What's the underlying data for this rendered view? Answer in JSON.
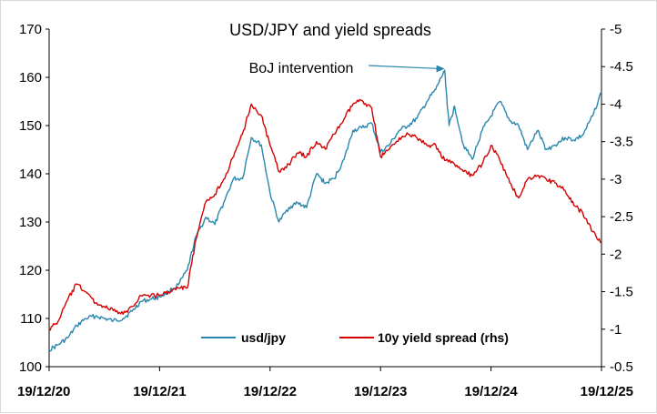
{
  "chart_data": {
    "type": "line",
    "title": "USD/JPY and yield spreads",
    "x_tick_labels": [
      "19/12/20",
      "19/12/21",
      "19/12/22",
      "19/12/23",
      "19/12/24",
      "19/12/25"
    ],
    "ylim_left": [
      100,
      170
    ],
    "yticks_left": [
      "100",
      "110",
      "120",
      "130",
      "140",
      "150",
      "160",
      "170"
    ],
    "ylim_right": [
      -0.5,
      -5
    ],
    "yticks_right": [
      "-0.5",
      "-1",
      "-1.5",
      "-2",
      "-2.5",
      "-3",
      "-3.5",
      "-4",
      "-4.5",
      "-5"
    ],
    "right_axis_inverted": true,
    "grid": false,
    "legend_position": "bottom-center",
    "annotation": {
      "text": "BoJ intervention",
      "x": 3.58,
      "y": 161.8
    },
    "series": [
      {
        "name": "usd/jpy",
        "axis": "left",
        "color": "#2a86ad",
        "points": [
          [
            0.0,
            103.5
          ],
          [
            0.08,
            104.5
          ],
          [
            0.17,
            106
          ],
          [
            0.25,
            108.5
          ],
          [
            0.33,
            110
          ],
          [
            0.42,
            110.5
          ],
          [
            0.5,
            110
          ],
          [
            0.58,
            109.5
          ],
          [
            0.67,
            110
          ],
          [
            0.75,
            111.5
          ],
          [
            0.83,
            113.5
          ],
          [
            0.92,
            114
          ],
          [
            1.0,
            114.5
          ],
          [
            1.08,
            115.5
          ],
          [
            1.17,
            117
          ],
          [
            1.25,
            120
          ],
          [
            1.33,
            127
          ],
          [
            1.42,
            131
          ],
          [
            1.5,
            129.5
          ],
          [
            1.58,
            134
          ],
          [
            1.67,
            139
          ],
          [
            1.75,
            139
          ],
          [
            1.83,
            147.5
          ],
          [
            1.92,
            146
          ],
          [
            2.0,
            136
          ],
          [
            2.08,
            130
          ],
          [
            2.17,
            133
          ],
          [
            2.25,
            134
          ],
          [
            2.33,
            133
          ],
          [
            2.42,
            140
          ],
          [
            2.5,
            138
          ],
          [
            2.58,
            139
          ],
          [
            2.67,
            143
          ],
          [
            2.75,
            149
          ],
          [
            2.83,
            149.5
          ],
          [
            2.92,
            150.5
          ],
          [
            3.0,
            144.5
          ],
          [
            3.08,
            146
          ],
          [
            3.17,
            149
          ],
          [
            3.25,
            150
          ],
          [
            3.33,
            151.5
          ],
          [
            3.42,
            155
          ],
          [
            3.5,
            157.5
          ],
          [
            3.58,
            161.5
          ],
          [
            3.62,
            150
          ],
          [
            3.67,
            154
          ],
          [
            3.75,
            146
          ],
          [
            3.83,
            143
          ],
          [
            3.92,
            149
          ],
          [
            4.0,
            152
          ],
          [
            4.08,
            155
          ],
          [
            4.17,
            151
          ],
          [
            4.25,
            150
          ],
          [
            4.33,
            145
          ],
          [
            4.42,
            149
          ],
          [
            4.5,
            145
          ],
          [
            4.58,
            146
          ],
          [
            4.67,
            147.5
          ],
          [
            4.75,
            147
          ],
          [
            4.83,
            148
          ],
          [
            4.92,
            152
          ],
          [
            5.0,
            157
          ]
        ]
      },
      {
        "name": "10y yield spread (rhs)",
        "axis": "right",
        "color": "#d40000",
        "points": [
          [
            0.0,
            -1.0
          ],
          [
            0.08,
            -1.1
          ],
          [
            0.17,
            -1.4
          ],
          [
            0.25,
            -1.6
          ],
          [
            0.33,
            -1.5
          ],
          [
            0.42,
            -1.35
          ],
          [
            0.5,
            -1.3
          ],
          [
            0.58,
            -1.25
          ],
          [
            0.67,
            -1.2
          ],
          [
            0.75,
            -1.3
          ],
          [
            0.83,
            -1.45
          ],
          [
            0.92,
            -1.45
          ],
          [
            1.0,
            -1.45
          ],
          [
            1.08,
            -1.5
          ],
          [
            1.17,
            -1.55
          ],
          [
            1.25,
            -1.55
          ],
          [
            1.33,
            -2.2
          ],
          [
            1.42,
            -2.7
          ],
          [
            1.5,
            -2.8
          ],
          [
            1.58,
            -3.0
          ],
          [
            1.67,
            -3.3
          ],
          [
            1.75,
            -3.6
          ],
          [
            1.83,
            -4.0
          ],
          [
            1.92,
            -3.85
          ],
          [
            2.0,
            -3.45
          ],
          [
            2.08,
            -3.1
          ],
          [
            2.17,
            -3.2
          ],
          [
            2.25,
            -3.35
          ],
          [
            2.33,
            -3.3
          ],
          [
            2.42,
            -3.5
          ],
          [
            2.5,
            -3.4
          ],
          [
            2.58,
            -3.6
          ],
          [
            2.67,
            -3.8
          ],
          [
            2.75,
            -4.0
          ],
          [
            2.83,
            -4.05
          ],
          [
            2.92,
            -3.95
          ],
          [
            3.0,
            -3.3
          ],
          [
            3.08,
            -3.4
          ],
          [
            3.17,
            -3.55
          ],
          [
            3.25,
            -3.6
          ],
          [
            3.33,
            -3.55
          ],
          [
            3.42,
            -3.45
          ],
          [
            3.5,
            -3.45
          ],
          [
            3.58,
            -3.25
          ],
          [
            3.67,
            -3.2
          ],
          [
            3.75,
            -3.1
          ],
          [
            3.83,
            -3.05
          ],
          [
            3.92,
            -3.2
          ],
          [
            4.0,
            -3.45
          ],
          [
            4.08,
            -3.25
          ],
          [
            4.17,
            -2.95
          ],
          [
            4.25,
            -2.75
          ],
          [
            4.33,
            -3.0
          ],
          [
            4.42,
            -3.05
          ],
          [
            4.5,
            -3.0
          ],
          [
            4.58,
            -2.95
          ],
          [
            4.67,
            -2.85
          ],
          [
            4.75,
            -2.65
          ],
          [
            4.83,
            -2.55
          ],
          [
            4.92,
            -2.3
          ],
          [
            5.0,
            -2.15
          ]
        ]
      }
    ]
  }
}
